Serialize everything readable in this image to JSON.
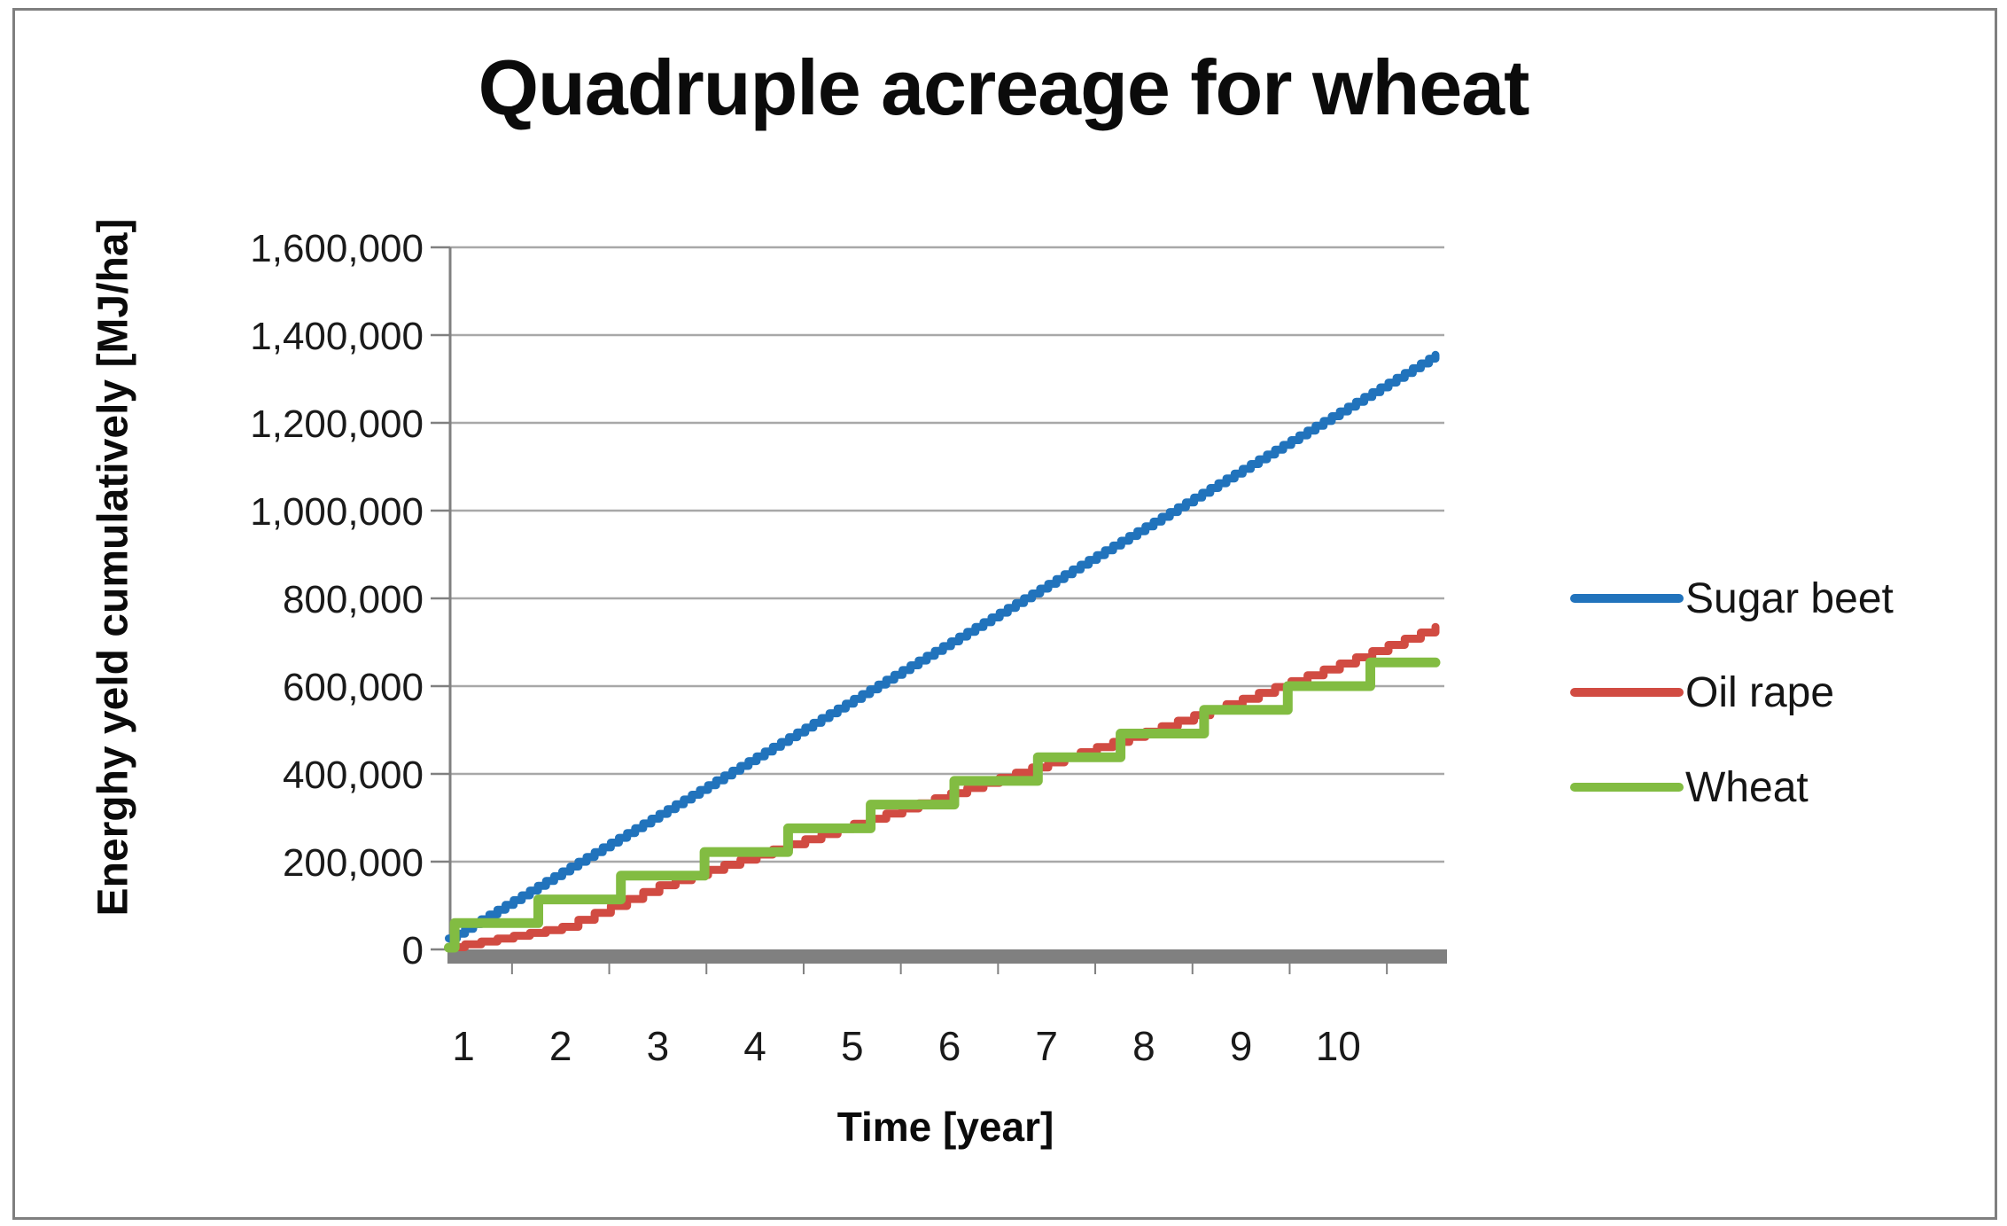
{
  "title": "Quadruple acreage for wheat",
  "y_axis": {
    "title": "Energhy yeld cumulatively [MJ/ha]",
    "tick_labels": [
      "0",
      "200,000",
      "400,000",
      "600,000",
      "800,000",
      "1,000,000",
      "1,200,000",
      "1,400,000",
      "1,600,000"
    ]
  },
  "x_axis": {
    "title": "Time [year]",
    "tick_labels": [
      "1",
      "2",
      "3",
      "4",
      "5",
      "6",
      "7",
      "8",
      "9",
      "10"
    ]
  },
  "legend": [
    {
      "label": "Sugar beet",
      "color": "#2173BC"
    },
    {
      "label": "Oil rape",
      "color": "#D14B42"
    },
    {
      "label": "Wheat",
      "color": "#82BC42"
    }
  ],
  "colors": {
    "gridline": "#A8A8A8",
    "axis_line": "#808080",
    "baseline_bar": "#808080",
    "tick_text": "#1a1a1a"
  },
  "chart_data": {
    "type": "line",
    "title": "Quadruple acreage for wheat",
    "xlabel": "Time [year]",
    "ylabel": "Energhy yeld cumulatively [MJ/ha]",
    "x_ticks": [
      1,
      2,
      3,
      4,
      5,
      6,
      7,
      8,
      9,
      10
    ],
    "x_range_years": [
      0.85,
      11.06
    ],
    "ylim": [
      0,
      1600000
    ],
    "y_gridline_step": 200000,
    "grid": true,
    "legend_position": "right",
    "series": [
      {
        "name": "Sugar beet",
        "color": "#2173BC",
        "render": "staircase-fine",
        "steps_per_year": 12,
        "stroke_width": 9,
        "anchors": [
          [
            0.85,
            25000
          ],
          [
            11,
            1355000
          ]
        ]
      },
      {
        "name": "Oil rape",
        "color": "#D14B42",
        "render": "staircase-fine",
        "steps_per_year": 6,
        "stroke_width": 9,
        "anchors": [
          [
            0.85,
            5000
          ],
          [
            2,
            50000
          ],
          [
            3,
            145000
          ],
          [
            4,
            215000
          ],
          [
            5,
            285000
          ],
          [
            6,
            355000
          ],
          [
            7,
            425000
          ],
          [
            8,
            495000
          ],
          [
            9,
            570000
          ],
          [
            10,
            650000
          ],
          [
            11,
            735000
          ]
        ]
      },
      {
        "name": "Wheat",
        "color": "#82BC42",
        "render": "staircase-jumps",
        "stroke_width": 11,
        "start_year": 0.85,
        "start_value": 4000,
        "end_year": 11,
        "jumps": [
          {
            "t": 0.91,
            "level": 60000
          },
          {
            "t": 1.77,
            "level": 114000
          },
          {
            "t": 2.62,
            "level": 168000
          },
          {
            "t": 3.48,
            "level": 222000
          },
          {
            "t": 4.34,
            "level": 276000
          },
          {
            "t": 5.19,
            "level": 330000
          },
          {
            "t": 6.05,
            "level": 384000
          },
          {
            "t": 6.91,
            "level": 438000
          },
          {
            "t": 7.76,
            "level": 492000
          },
          {
            "t": 8.62,
            "level": 546000
          },
          {
            "t": 9.48,
            "level": 600000
          },
          {
            "t": 10.33,
            "level": 654000
          }
        ]
      }
    ]
  }
}
